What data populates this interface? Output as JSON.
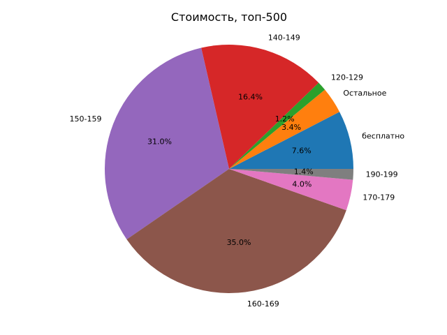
{
  "chart_data": {
    "type": "pie",
    "title": "Стоимость, топ-500",
    "start_angle_deg": 0,
    "direction": "counterclockwise",
    "slices": [
      {
        "label": "бесплатно",
        "value": 7.6,
        "pct_label": "7.6%",
        "color": "#1f77b4"
      },
      {
        "label": "Остальное",
        "value": 3.4,
        "pct_label": "3.4%",
        "color": "#ff7f0e"
      },
      {
        "label": "120-129",
        "value": 1.2,
        "pct_label": "1.2%",
        "color": "#2ca02c"
      },
      {
        "label": "140-149",
        "value": 16.4,
        "pct_label": "16.4%",
        "color": "#d62728"
      },
      {
        "label": "150-159",
        "value": 31.0,
        "pct_label": "31.0%",
        "color": "#9467bd"
      },
      {
        "label": "160-169",
        "value": 35.0,
        "pct_label": "35.0%",
        "color": "#8c564b"
      },
      {
        "label": "170-179",
        "value": 4.0,
        "pct_label": "4.0%",
        "color": "#e377c2"
      },
      {
        "label": "190-199",
        "value": 1.4,
        "pct_label": "1.4%",
        "color": "#7f7f7f"
      }
    ]
  }
}
